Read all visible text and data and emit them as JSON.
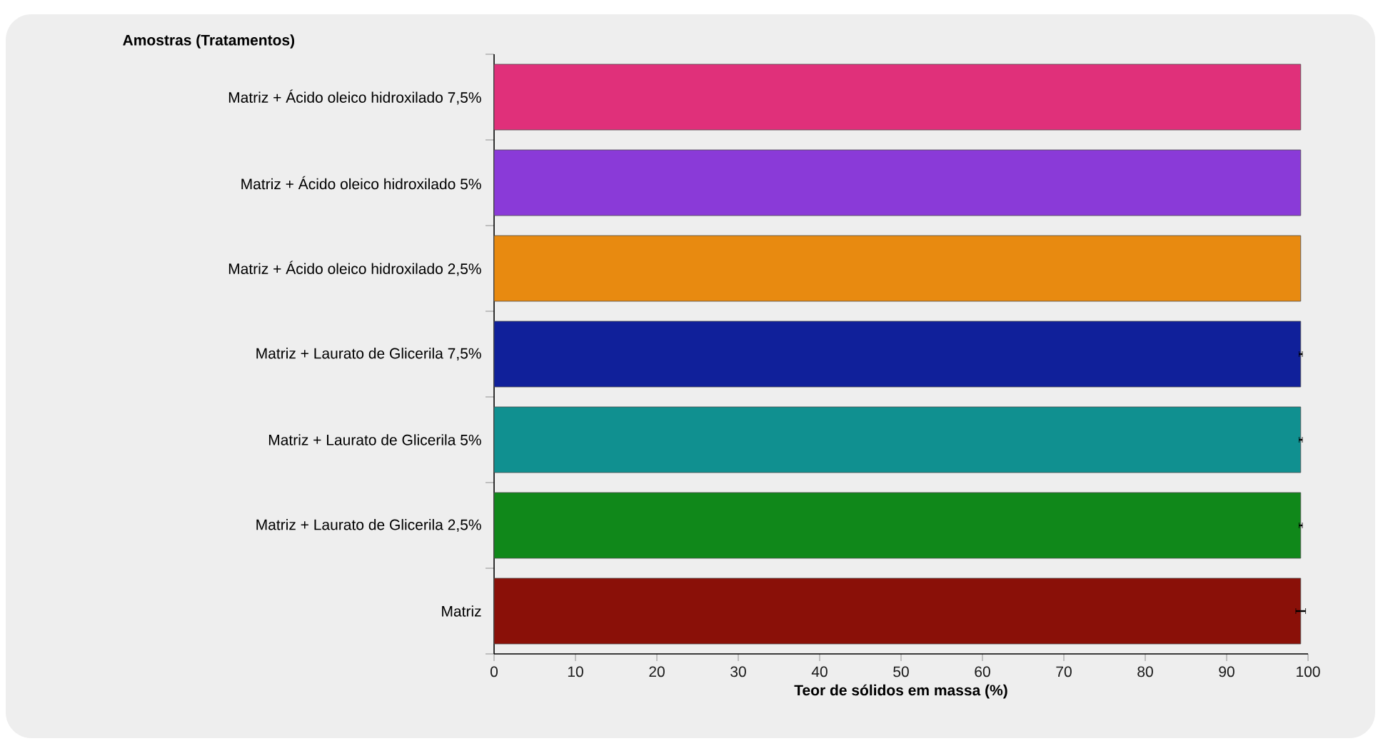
{
  "chart_data": {
    "type": "bar",
    "orientation": "horizontal",
    "xlabel": "Teor de sólidos em massa (%)",
    "ylabel": "Amostras (Tratamentos)",
    "categories": [
      "Matriz + Ácido oleico hidroxilado 7,5%",
      "Matriz + Ácido oleico hidroxilado 5%",
      "Matriz + Ácido oleico hidroxilado 2,5%",
      "Matriz + Laurato de Glicerila 7,5%",
      "Matriz + Laurato de Glicerila 5%",
      "Matriz + Laurato de Glicerila 2,5%",
      "Matriz"
    ],
    "values": [
      99.1,
      99.1,
      99.1,
      99.1,
      99.1,
      99.1,
      99.1
    ],
    "errors": [
      null,
      null,
      null,
      0.2,
      0.2,
      0.2,
      0.6
    ],
    "colors": [
      "#e0307a",
      "#8a3ad8",
      "#e88a10",
      "#10209a",
      "#109090",
      "#10881a",
      "#8a1008"
    ],
    "xlim": [
      0,
      100
    ],
    "xticks": [
      0,
      10,
      20,
      30,
      40,
      50,
      60,
      70,
      80,
      90,
      100
    ],
    "grid": false
  }
}
